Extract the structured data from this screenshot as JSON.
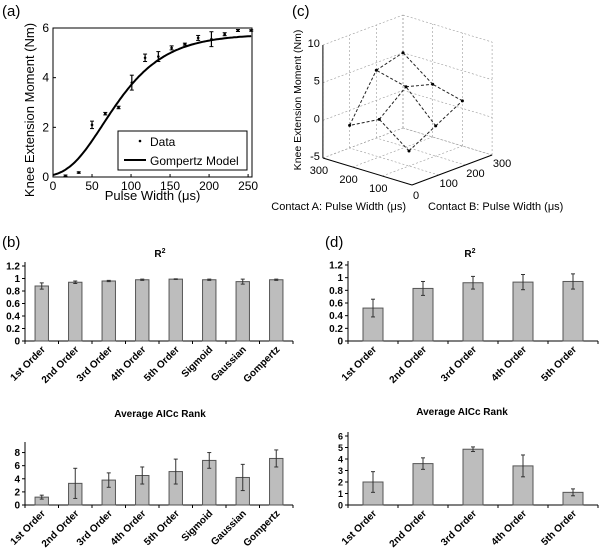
{
  "chart_data": [
    {
      "panel": "(a)",
      "type": "line",
      "xlabel": "Pulse Width (μs)",
      "ylabel": "Knee Extension Moment (Nm)",
      "xlim": [
        0,
        255
      ],
      "ylim": [
        0,
        6
      ],
      "xticks": [
        0,
        50,
        100,
        150,
        200,
        250
      ],
      "yticks": [
        0,
        2,
        4,
        6
      ],
      "legend": {
        "position": "bottom-right",
        "entries": [
          "Data",
          "Gompertz Model"
        ]
      },
      "series": [
        {
          "name": "Data",
          "kind": "scatter-errorbar",
          "x": [
            16,
            33,
            50,
            67,
            84,
            101,
            118,
            135,
            152,
            169,
            186,
            203,
            220,
            237,
            254
          ],
          "y": [
            0.05,
            0.18,
            2.1,
            2.55,
            2.8,
            3.8,
            4.8,
            4.85,
            5.2,
            5.35,
            5.6,
            5.55,
            5.75,
            5.9,
            5.9
          ],
          "err": [
            0.03,
            0.03,
            0.15,
            0.05,
            0.05,
            0.3,
            0.15,
            0.2,
            0.08,
            0.04,
            0.1,
            0.3,
            0.06,
            0.04,
            0.03
          ]
        },
        {
          "name": "Gompertz Model",
          "kind": "line",
          "params": {
            "a": 5.75,
            "b": 4.27,
            "c": 0.0227
          }
        }
      ]
    },
    {
      "panel": "(c)",
      "type": "surface3d",
      "zlabel": "Knee Extension Moment (Nm)",
      "xlabel": "Contact A: Pulse Width (μs)",
      "ylabel": "Contact B: Pulse Width (μs)",
      "zticks": [
        -5,
        0,
        5,
        10
      ],
      "aticks": [
        100,
        200,
        300
      ],
      "bticks": [
        100,
        200,
        300
      ],
      "origin_label": "0",
      "A": [
        100,
        200,
        300
      ],
      "B": [
        100,
        200,
        300
      ],
      "Z": [
        [
          -3,
          -1,
          1
        ],
        [
          0,
          3,
          2
        ],
        [
          -2,
          4,
          5
        ]
      ]
    },
    {
      "panel": "(b)",
      "type": "bar",
      "title": "R",
      "title_sup": "2",
      "categories": [
        "1st Order",
        "2nd Order",
        "3rd Order",
        "4th Order",
        "5th Order",
        "Sigmoid",
        "Gaussian",
        "Gompertz"
      ],
      "values": [
        0.88,
        0.94,
        0.96,
        0.98,
        0.99,
        0.98,
        0.95,
        0.98
      ],
      "err": [
        0.05,
        0.02,
        0.01,
        0.01,
        0.005,
        0.01,
        0.04,
        0.01
      ],
      "ylim": [
        0,
        1.2
      ],
      "yticks": [
        "0",
        "0.2",
        "0.4",
        "0.6",
        "0.8",
        "1",
        "1.2"
      ]
    },
    {
      "panel": "",
      "type": "bar",
      "title": "Average AICc Rank",
      "categories": [
        "1st Order",
        "2nd Order",
        "3rd Order",
        "4th Order",
        "5th Order",
        "Sigmoid",
        "Gaussian",
        "Gompertz"
      ],
      "values": [
        1.2,
        3.3,
        3.8,
        4.5,
        5.1,
        6.8,
        4.2,
        7.1
      ],
      "err": [
        0.3,
        2.3,
        1.1,
        1.3,
        1.9,
        1.2,
        2.0,
        1.3
      ],
      "ylim": [
        0,
        9
      ],
      "yticks": [
        "0",
        "2",
        "4",
        "6",
        "8"
      ]
    },
    {
      "panel": "(d)",
      "type": "bar",
      "title": "R",
      "title_sup": "2",
      "categories": [
        "1st Order",
        "2nd Order",
        "3rd Order",
        "4th Order",
        "5th Order"
      ],
      "values": [
        0.52,
        0.83,
        0.92,
        0.93,
        0.94
      ],
      "err": [
        0.14,
        0.11,
        0.1,
        0.12,
        0.12
      ],
      "ylim": [
        0,
        1.2
      ],
      "yticks": [
        "0",
        "0.2",
        "0.4",
        "0.6",
        "0.8",
        "1",
        "1.2"
      ]
    },
    {
      "panel": "",
      "type": "bar",
      "title": "Average AICc Rank",
      "categories": [
        "1st Order",
        "2nd Order",
        "3rd Order",
        "4th Order",
        "5th Order"
      ],
      "values": [
        2.0,
        3.6,
        4.85,
        3.4,
        1.1
      ],
      "err": [
        0.9,
        0.5,
        0.2,
        0.95,
        0.3
      ],
      "ylim": [
        0,
        6
      ],
      "yticks": [
        "0",
        "1",
        "2",
        "3",
        "4",
        "5",
        "6"
      ]
    }
  ]
}
